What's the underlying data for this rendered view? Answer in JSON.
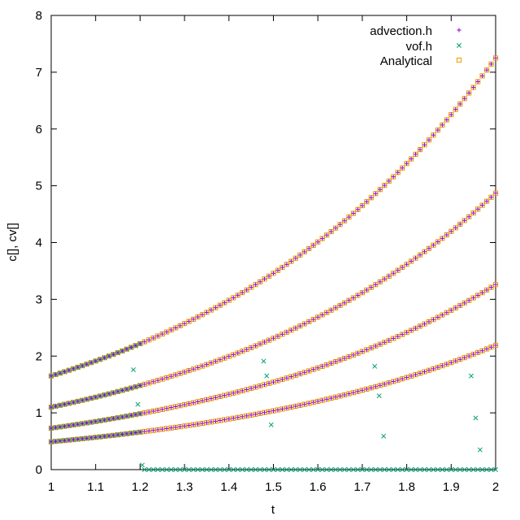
{
  "chart_data": {
    "type": "scatter",
    "xlabel": "t",
    "ylabel": "c[], cv[]",
    "xlim": [
      1,
      2
    ],
    "ylim": [
      0,
      8
    ],
    "x_ticks": [
      1,
      1.1,
      1.2,
      1.3,
      1.4,
      1.5,
      1.6,
      1.7,
      1.8,
      1.9,
      2
    ],
    "x_tick_labels": [
      "1",
      "1.1",
      "1.2",
      "1.3",
      "1.4",
      "1.5",
      "1.6",
      "1.7",
      "1.8",
      "1.9",
      "2"
    ],
    "y_ticks": [
      0,
      1,
      2,
      3,
      4,
      5,
      6,
      7,
      8
    ],
    "y_tick_labels": [
      "0",
      "1",
      "2",
      "3",
      "4",
      "5",
      "6",
      "7",
      "8"
    ],
    "grid": false,
    "legend_position": "top-right",
    "curves_description": "four exponential-like curves sampled every 0.01 in t from 1 to 2",
    "curves": [
      {
        "start": 1.65,
        "end": 7.25
      },
      {
        "start": 1.1,
        "end": 4.87
      },
      {
        "start": 0.73,
        "end": 3.26
      },
      {
        "start": 0.49,
        "end": 2.19
      }
    ],
    "sample_step": 0.01,
    "series": [
      {
        "name": "advection.h",
        "marker": "plus",
        "color": "#9400d3"
      },
      {
        "name": "vof.h",
        "marker": "cross",
        "color": "#009e73"
      },
      {
        "name": "Analytical",
        "marker": "square",
        "color": "#e69f00"
      }
    ],
    "vof_zero_from": 1.21,
    "vof_outliers": [
      {
        "x": 1.185,
        "y": 1.76
      },
      {
        "x": 1.195,
        "y": 1.15
      },
      {
        "x": 1.205,
        "y": 0.08
      },
      {
        "x": 1.478,
        "y": 1.91
      },
      {
        "x": 1.485,
        "y": 1.65
      },
      {
        "x": 1.495,
        "y": 0.79
      },
      {
        "x": 1.728,
        "y": 1.82
      },
      {
        "x": 1.738,
        "y": 1.3
      },
      {
        "x": 1.748,
        "y": 0.59
      },
      {
        "x": 1.945,
        "y": 1.65
      },
      {
        "x": 1.955,
        "y": 0.91
      },
      {
        "x": 1.965,
        "y": 0.35
      }
    ]
  }
}
